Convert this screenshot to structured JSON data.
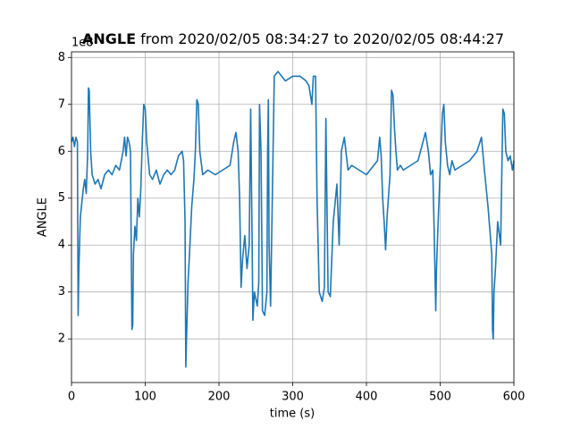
{
  "chart_data": {
    "type": "line",
    "title_parts": [
      "ANGLE",
      "from 2020/02/05 08:34:27 to 2020/02/05 08:44:27"
    ],
    "xlabel": "time (s)",
    "ylabel": "ANGLE",
    "y_offset_label": "1e8",
    "xlim": [
      0,
      600
    ],
    "xticks": [
      0,
      100,
      200,
      300,
      400,
      500,
      600
    ],
    "ylim": [
      1.07,
      8.12
    ],
    "yticks": [
      2,
      3,
      4,
      5,
      6,
      7,
      8
    ],
    "grid": true,
    "x": [
      0,
      2,
      4,
      6,
      8,
      9,
      10,
      12,
      14,
      16,
      18,
      20,
      22,
      23,
      24,
      26,
      28,
      32,
      36,
      40,
      45,
      50,
      55,
      60,
      65,
      70,
      72,
      74,
      76,
      78,
      80,
      81,
      82,
      83,
      84,
      86,
      88,
      90,
      92,
      94,
      96,
      98,
      100,
      102,
      106,
      110,
      115,
      120,
      125,
      130,
      135,
      140,
      145,
      150,
      152,
      154,
      155,
      156,
      158,
      160,
      163,
      166,
      168,
      170,
      172,
      174,
      178,
      185,
      195,
      205,
      215,
      220,
      223,
      226,
      228,
      230,
      232,
      235,
      238,
      241,
      243,
      245,
      246,
      248,
      252,
      254,
      255,
      257,
      259,
      262,
      265,
      266,
      267,
      268,
      270,
      275,
      280,
      290,
      300,
      310,
      318,
      322,
      326,
      328,
      331,
      333,
      336,
      340,
      343,
      345,
      348,
      351,
      355,
      360,
      363,
      366,
      370,
      375,
      380,
      390,
      400,
      410,
      415,
      418,
      420,
      422,
      424,
      426,
      428,
      432,
      434,
      436,
      438,
      440,
      442,
      446,
      450,
      460,
      470,
      480,
      484,
      487,
      490,
      492,
      494,
      495,
      497,
      500,
      503,
      505,
      507,
      510,
      513,
      516,
      520,
      530,
      540,
      550,
      556,
      560,
      565,
      570,
      571,
      572,
      573,
      575,
      578,
      582,
      585,
      587,
      589,
      592,
      595,
      598,
      600
    ],
    "series": [
      {
        "name": "ANGLE",
        "color": "#1f77b4",
        "values": [
          6.2,
          6.3,
          6.1,
          6.3,
          6.2,
          2.5,
          3.5,
          4.6,
          4.9,
          5.2,
          5.4,
          5.1,
          6.0,
          7.35,
          7.3,
          6.0,
          5.5,
          5.3,
          5.4,
          5.2,
          5.5,
          5.6,
          5.5,
          5.7,
          5.6,
          6.0,
          6.3,
          5.9,
          6.3,
          6.2,
          6.0,
          4.0,
          2.2,
          2.3,
          3.8,
          4.4,
          4.1,
          5.0,
          4.6,
          5.2,
          6.2,
          7.0,
          6.9,
          6.2,
          5.5,
          5.4,
          5.6,
          5.3,
          5.5,
          5.6,
          5.5,
          5.6,
          5.9,
          6.0,
          5.8,
          4.5,
          1.4,
          2.0,
          3.2,
          3.8,
          4.8,
          5.4,
          6.0,
          7.1,
          7.0,
          6.0,
          5.5,
          5.6,
          5.5,
          5.6,
          5.7,
          6.2,
          6.4,
          6.0,
          5.0,
          3.1,
          3.7,
          4.2,
          3.5,
          4.0,
          6.9,
          4.0,
          2.4,
          3.0,
          2.7,
          3.2,
          7.0,
          6.0,
          2.6,
          2.5,
          3.0,
          6.0,
          7.1,
          4.0,
          2.7,
          7.6,
          7.7,
          7.5,
          7.6,
          7.6,
          7.5,
          7.4,
          7.0,
          7.6,
          7.6,
          5.0,
          3.0,
          2.8,
          3.1,
          6.7,
          3.0,
          2.9,
          4.5,
          5.3,
          4.0,
          6.0,
          6.3,
          5.6,
          5.7,
          5.6,
          5.5,
          5.7,
          5.8,
          6.3,
          5.9,
          5.0,
          4.5,
          3.9,
          4.6,
          5.5,
          7.3,
          7.2,
          6.5,
          6.0,
          5.6,
          5.7,
          5.6,
          5.7,
          5.8,
          6.4,
          6.0,
          5.5,
          5.6,
          4.2,
          2.6,
          3.5,
          4.4,
          5.6,
          6.8,
          7.0,
          6.2,
          5.7,
          5.5,
          5.8,
          5.6,
          5.7,
          5.8,
          6.0,
          6.3,
          5.6,
          4.8,
          3.8,
          2.2,
          2.0,
          3.0,
          3.5,
          4.5,
          4.0,
          6.9,
          6.8,
          6.0,
          5.8,
          5.9,
          5.6,
          5.8
        ]
      }
    ]
  }
}
